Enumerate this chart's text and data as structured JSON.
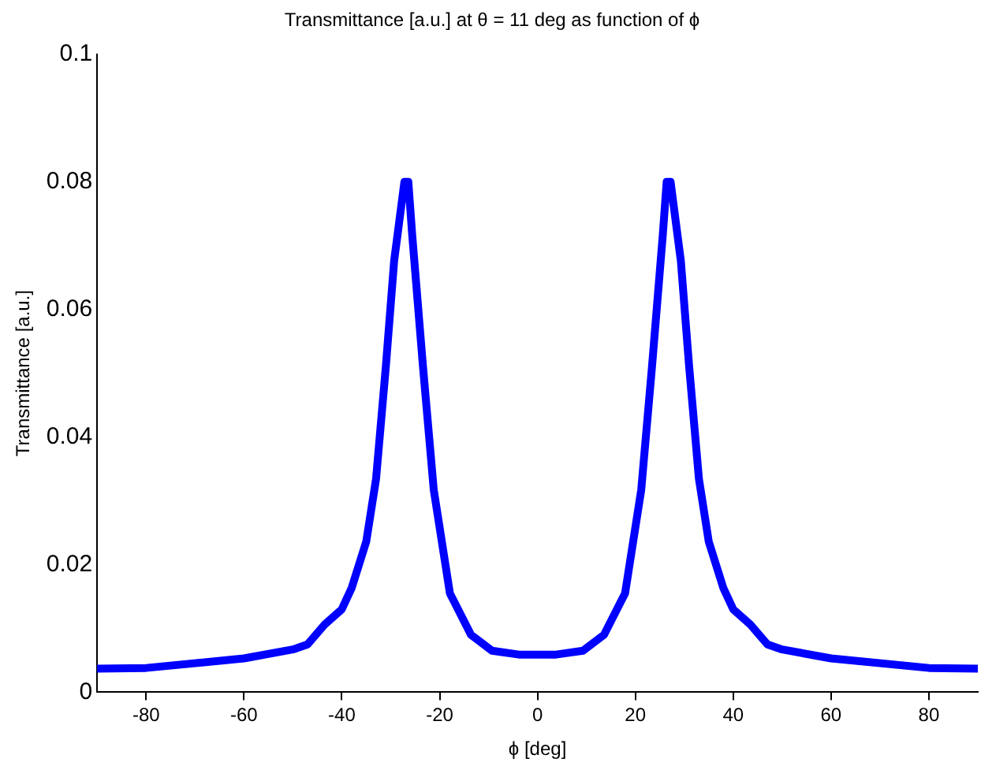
{
  "chart_data": {
    "type": "line",
    "title": "Transmittance [a.u.] at θ = 11 deg as function of ϕ",
    "xlabel": "ϕ [deg]",
    "ylabel": "Transmittance [a.u.]",
    "x": [
      -90,
      -80,
      -60,
      -50,
      -47,
      -43.5,
      -40,
      -38,
      -35,
      -33,
      -31,
      -29.3,
      -27.2,
      -26.4,
      -25.6,
      -23.4,
      -21.2,
      -17.9,
      -13.6,
      -9.3,
      -3.8,
      0,
      3.8,
      9.3,
      13.6,
      17.9,
      21.2,
      23.4,
      25.6,
      26.4,
      27.2,
      29.3,
      31,
      33,
      35,
      38,
      40,
      43.5,
      47,
      50,
      60,
      80,
      90
    ],
    "series": [
      {
        "color": "#0000ff",
        "values": [
          0.0037,
          0.0038,
          0.0053,
          0.0067,
          0.0075,
          0.0106,
          0.013,
          0.0163,
          0.0236,
          0.0334,
          0.051,
          0.0676,
          0.08,
          0.08,
          0.0716,
          0.051,
          0.0317,
          0.0155,
          0.009,
          0.0065,
          0.0059,
          0.0059,
          0.0059,
          0.0065,
          0.009,
          0.0155,
          0.0317,
          0.051,
          0.0716,
          0.08,
          0.08,
          0.0676,
          0.051,
          0.0334,
          0.0236,
          0.0163,
          0.013,
          0.0106,
          0.0075,
          0.0067,
          0.0053,
          0.0038,
          0.0037
        ]
      }
    ],
    "xlim": [
      -90,
      90
    ],
    "xticks": [
      -80,
      -60,
      -40,
      -20,
      0,
      20,
      40,
      60,
      80
    ],
    "ylim": [
      0,
      0.1
    ],
    "yticks": [
      0,
      0.02,
      0.04,
      0.06,
      0.08,
      0.1
    ],
    "grid": false,
    "legend": false,
    "marker": "none",
    "line_style": "solid"
  }
}
